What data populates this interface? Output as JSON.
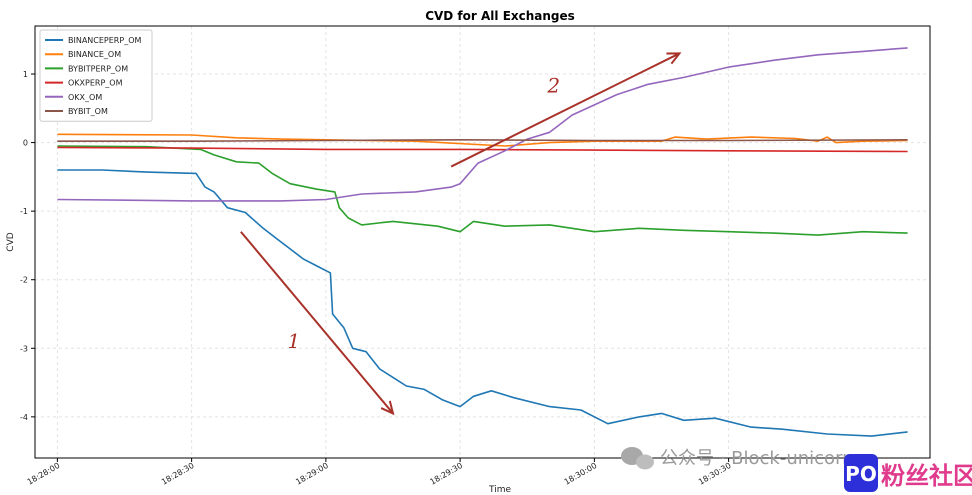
{
  "chart_data": {
    "type": "line",
    "title": "CVD for All Exchanges",
    "xlabel": "Time",
    "ylabel": "CVD",
    "x_ticks": [
      "18:28:00",
      "18:28:30",
      "18:29:00",
      "18:29:30",
      "18:30:00",
      "18:30:30"
    ],
    "y_ticks": [
      "1",
      "0",
      "-1",
      "-2",
      "-3",
      "-4"
    ],
    "xlim": [
      "18:27:55",
      "18:31:15"
    ],
    "ylim": [
      -4.6,
      1.7
    ],
    "grid": true,
    "legend_position": "top-left",
    "series": [
      {
        "name": "BINANCEPERP_OM",
        "color": "#1f77b4",
        "points": [
          [
            "18:28:00",
            -0.4
          ],
          [
            "18:28:10",
            -0.4
          ],
          [
            "18:28:20",
            -0.43
          ],
          [
            "18:28:31",
            -0.45
          ],
          [
            "18:28:33",
            -0.65
          ],
          [
            "18:28:35",
            -0.72
          ],
          [
            "18:28:38",
            -0.95
          ],
          [
            "18:28:42",
            -1.02
          ],
          [
            "18:28:46",
            -1.25
          ],
          [
            "18:28:49",
            -1.4
          ],
          [
            "18:28:52",
            -1.55
          ],
          [
            "18:28:55",
            -1.7
          ],
          [
            "18:28:58",
            -1.8
          ],
          [
            "18:29:01",
            -1.9
          ],
          [
            "18:29:01.5",
            -2.5
          ],
          [
            "18:29:04",
            -2.7
          ],
          [
            "18:29:06",
            -3.0
          ],
          [
            "18:29:09",
            -3.05
          ],
          [
            "18:29:12",
            -3.3
          ],
          [
            "18:29:18",
            -3.55
          ],
          [
            "18:29:22",
            -3.6
          ],
          [
            "18:29:26",
            -3.75
          ],
          [
            "18:29:30",
            -3.85
          ],
          [
            "18:29:33",
            -3.7
          ],
          [
            "18:29:37",
            -3.62
          ],
          [
            "18:29:42",
            -3.72
          ],
          [
            "18:29:50",
            -3.85
          ],
          [
            "18:29:57",
            -3.9
          ],
          [
            "18:30:03",
            -4.1
          ],
          [
            "18:30:10",
            -4.0
          ],
          [
            "18:30:15",
            -3.95
          ],
          [
            "18:30:20",
            -4.05
          ],
          [
            "18:30:27",
            -4.02
          ],
          [
            "18:30:35",
            -4.15
          ],
          [
            "18:30:42",
            -4.18
          ],
          [
            "18:30:52",
            -4.25
          ],
          [
            "18:31:02",
            -4.28
          ],
          [
            "18:31:10",
            -4.22
          ]
        ]
      },
      {
        "name": "BINANCE_OM",
        "color": "#ff7f0e",
        "points": [
          [
            "18:28:00",
            0.12
          ],
          [
            "18:28:30",
            0.11
          ],
          [
            "18:28:40",
            0.07
          ],
          [
            "18:28:50",
            0.05
          ],
          [
            "18:29:00",
            0.04
          ],
          [
            "18:29:20",
            0.02
          ],
          [
            "18:29:40",
            -0.05
          ],
          [
            "18:29:50",
            0.0
          ],
          [
            "18:30:00",
            0.02
          ],
          [
            "18:30:15",
            0.02
          ],
          [
            "18:30:18",
            0.08
          ],
          [
            "18:30:25",
            0.05
          ],
          [
            "18:30:35",
            0.08
          ],
          [
            "18:30:45",
            0.06
          ],
          [
            "18:30:50",
            0.02
          ],
          [
            "18:30:52",
            0.08
          ],
          [
            "18:30:54",
            0.0
          ],
          [
            "18:31:00",
            0.02
          ],
          [
            "18:31:10",
            0.03
          ]
        ]
      },
      {
        "name": "BYBITPERP_OM",
        "color": "#2ca02c",
        "points": [
          [
            "18:28:00",
            -0.05
          ],
          [
            "18:28:20",
            -0.06
          ],
          [
            "18:28:32",
            -0.1
          ],
          [
            "18:28:35",
            -0.18
          ],
          [
            "18:28:40",
            -0.28
          ],
          [
            "18:28:45",
            -0.3
          ],
          [
            "18:28:48",
            -0.45
          ],
          [
            "18:28:52",
            -0.6
          ],
          [
            "18:28:58",
            -0.68
          ],
          [
            "18:29:02",
            -0.72
          ],
          [
            "18:29:03",
            -0.95
          ],
          [
            "18:29:05",
            -1.1
          ],
          [
            "18:29:08",
            -1.2
          ],
          [
            "18:29:15",
            -1.15
          ],
          [
            "18:29:25",
            -1.22
          ],
          [
            "18:29:30",
            -1.3
          ],
          [
            "18:29:33",
            -1.15
          ],
          [
            "18:29:40",
            -1.22
          ],
          [
            "18:29:50",
            -1.2
          ],
          [
            "18:30:00",
            -1.3
          ],
          [
            "18:30:10",
            -1.25
          ],
          [
            "18:30:20",
            -1.28
          ],
          [
            "18:30:30",
            -1.3
          ],
          [
            "18:30:40",
            -1.32
          ],
          [
            "18:30:50",
            -1.35
          ],
          [
            "18:31:00",
            -1.3
          ],
          [
            "18:31:10",
            -1.32
          ]
        ]
      },
      {
        "name": "OKXPERP_OM",
        "color": "#d62728",
        "points": [
          [
            "18:28:00",
            -0.07
          ],
          [
            "18:28:30",
            -0.08
          ],
          [
            "18:29:00",
            -0.1
          ],
          [
            "18:29:30",
            -0.1
          ],
          [
            "18:30:00",
            -0.11
          ],
          [
            "18:30:30",
            -0.12
          ],
          [
            "18:31:10",
            -0.13
          ]
        ]
      },
      {
        "name": "OKX_OM",
        "color": "#9467bd",
        "points": [
          [
            "18:28:00",
            -0.83
          ],
          [
            "18:28:30",
            -0.85
          ],
          [
            "18:28:50",
            -0.85
          ],
          [
            "18:29:00",
            -0.83
          ],
          [
            "18:29:08",
            -0.75
          ],
          [
            "18:29:20",
            -0.72
          ],
          [
            "18:29:28",
            -0.65
          ],
          [
            "18:29:30",
            -0.6
          ],
          [
            "18:29:34",
            -0.3
          ],
          [
            "18:29:40",
            -0.12
          ],
          [
            "18:29:45",
            0.05
          ],
          [
            "18:29:50",
            0.15
          ],
          [
            "18:29:55",
            0.4
          ],
          [
            "18:30:00",
            0.55
          ],
          [
            "18:30:05",
            0.7
          ],
          [
            "18:30:12",
            0.85
          ],
          [
            "18:30:20",
            0.95
          ],
          [
            "18:30:30",
            1.1
          ],
          [
            "18:30:40",
            1.2
          ],
          [
            "18:30:50",
            1.28
          ],
          [
            "18:31:00",
            1.33
          ],
          [
            "18:31:10",
            1.38
          ]
        ]
      },
      {
        "name": "BYBIT_OM",
        "color": "#8c564b",
        "points": [
          [
            "18:28:00",
            0.02
          ],
          [
            "18:28:30",
            0.02
          ],
          [
            "18:29:00",
            0.03
          ],
          [
            "18:29:30",
            0.04
          ],
          [
            "18:30:00",
            0.03
          ],
          [
            "18:30:30",
            0.03
          ],
          [
            "18:31:10",
            0.04
          ]
        ]
      }
    ],
    "annotations": [
      {
        "label": "1",
        "color": "#a8322a",
        "from": [
          "18:28:41",
          -1.3
        ],
        "to": [
          "18:29:15",
          -3.95
        ]
      },
      {
        "label": "2",
        "color": "#a8322a",
        "from": [
          "18:29:28",
          -0.35
        ],
        "to": [
          "18:30:19",
          1.3
        ]
      }
    ]
  },
  "watermark": {
    "text": "公众号 · Block-unicorn",
    "badge_text": "粉丝社区",
    "badge_icon": "PO"
  }
}
